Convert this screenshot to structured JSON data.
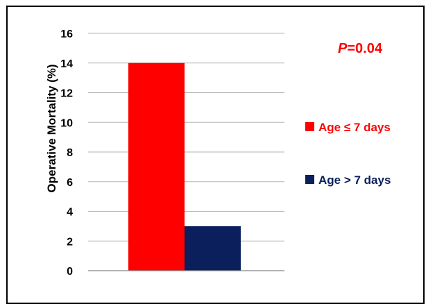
{
  "chart_data": {
    "type": "bar",
    "title": "",
    "xlabel": "",
    "ylabel": "Operative Mortality (%)",
    "ylim": [
      0,
      16
    ],
    "yticks": [
      0,
      2,
      4,
      6,
      8,
      10,
      12,
      14,
      16
    ],
    "grid": true,
    "legend_position": "right",
    "series": [
      {
        "name": "Age ≤ 7 days",
        "values": [
          14
        ],
        "color": "#ff0000"
      },
      {
        "name": "Age > 7 days",
        "values": [
          3
        ],
        "color": "#0a1f5c"
      }
    ],
    "annotation": {
      "label_italic": "P",
      "label_rest": "=0.04",
      "color": "#ff0000"
    }
  }
}
